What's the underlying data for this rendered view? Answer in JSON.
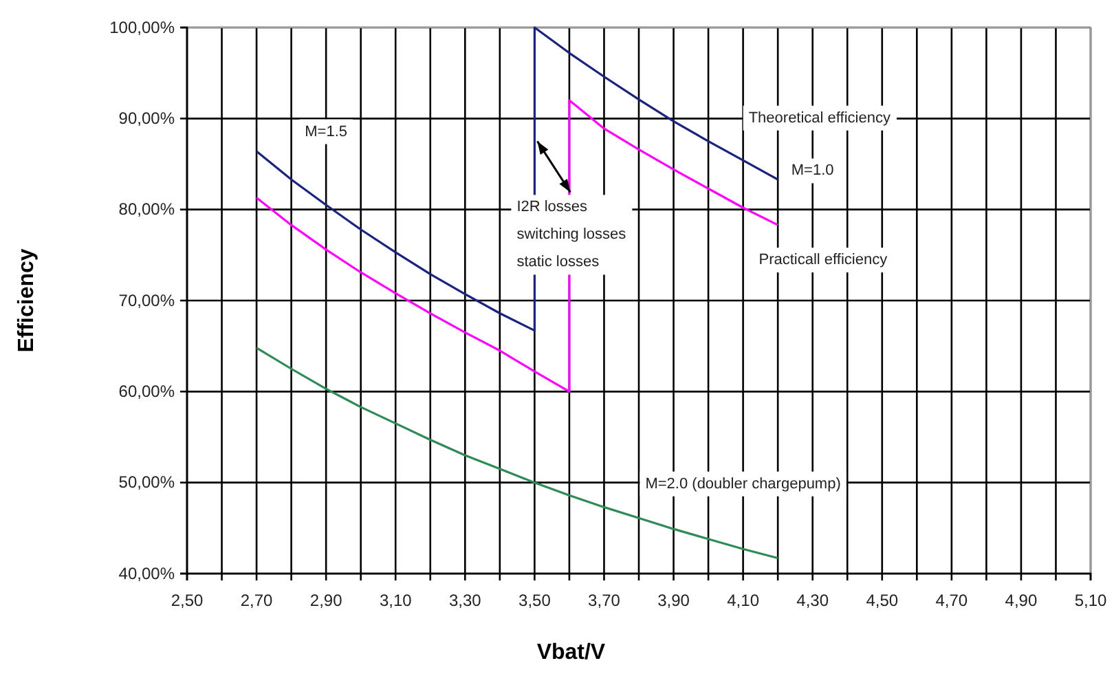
{
  "chart_data": {
    "type": "line",
    "xlabel": "Vbat/V",
    "ylabel": "Efficiency",
    "xlim": [
      2.5,
      5.1
    ],
    "xticks": [
      {
        "value": 2.5,
        "label": "2,50"
      },
      {
        "value": 2.6,
        "label": null
      },
      {
        "value": 2.7,
        "label": "2,70"
      },
      {
        "value": 2.8,
        "label": null
      },
      {
        "value": 2.9,
        "label": "2,90"
      },
      {
        "value": 3.0,
        "label": null
      },
      {
        "value": 3.1,
        "label": "3,10"
      },
      {
        "value": 3.2,
        "label": null
      },
      {
        "value": 3.3,
        "label": "3,30"
      },
      {
        "value": 3.4,
        "label": null
      },
      {
        "value": 3.5,
        "label": "3,50"
      },
      {
        "value": 3.6,
        "label": null
      },
      {
        "value": 3.7,
        "label": "3,70"
      },
      {
        "value": 3.8,
        "label": null
      },
      {
        "value": 3.9,
        "label": "3,90"
      },
      {
        "value": 4.0,
        "label": null
      },
      {
        "value": 4.1,
        "label": "4,10"
      },
      {
        "value": 4.2,
        "label": null
      },
      {
        "value": 4.3,
        "label": "4,30"
      },
      {
        "value": 4.4,
        "label": null
      },
      {
        "value": 4.5,
        "label": "4,50"
      },
      {
        "value": 4.6,
        "label": null
      },
      {
        "value": 4.7,
        "label": "4,70"
      },
      {
        "value": 4.8,
        "label": null
      },
      {
        "value": 4.9,
        "label": "4,90"
      },
      {
        "value": 5.0,
        "label": null
      },
      {
        "value": 5.1,
        "label": "5,10"
      }
    ],
    "ylim": [
      40,
      100
    ],
    "yticks": [
      {
        "value": 40,
        "label": "40,00%"
      },
      {
        "value": 50,
        "label": "50,00%"
      },
      {
        "value": 60,
        "label": "60,00%"
      },
      {
        "value": 70,
        "label": "70,00%"
      },
      {
        "value": 80,
        "label": "80,00%"
      },
      {
        "value": 90,
        "label": "90,00%"
      },
      {
        "value": 100,
        "label": "100,00%"
      }
    ],
    "grid": true,
    "marker": "none",
    "line_style": "solid",
    "series": [
      {
        "name": "Theoretical efficiency",
        "color": "#1a237e",
        "x": [
          2.7,
          2.8,
          2.9,
          3.0,
          3.1,
          3.2,
          3.3,
          3.4,
          3.5,
          3.5,
          3.6,
          3.7,
          3.8,
          3.9,
          4.0,
          4.1,
          4.2
        ],
        "values": [
          86.4,
          83.3,
          80.5,
          77.8,
          75.3,
          72.9,
          70.7,
          68.6,
          66.7,
          100,
          97.2,
          94.6,
          92.1,
          89.7,
          87.5,
          85.4,
          83.3
        ]
      },
      {
        "name": "Practicall efficiency",
        "color": "#ff00ff",
        "x": [
          2.7,
          2.8,
          2.9,
          3.0,
          3.1,
          3.2,
          3.3,
          3.4,
          3.5,
          3.6,
          3.6,
          3.7,
          3.8,
          3.9,
          4.0,
          4.1,
          4.2
        ],
        "values": [
          81.3,
          78.3,
          75.6,
          73.1,
          70.8,
          68.6,
          66.5,
          64.5,
          62.2,
          60.0,
          92.0,
          88.9,
          86.6,
          84.4,
          82.3,
          80.2,
          78.3
        ]
      },
      {
        "name": "M=2.0 (doubler chargepump)",
        "color": "#2e8b57",
        "x": [
          2.7,
          2.8,
          2.9,
          3.0,
          3.1,
          3.2,
          3.3,
          3.4,
          3.5,
          3.6,
          3.7,
          3.8,
          3.9,
          4.0,
          4.1,
          4.2
        ],
        "values": [
          64.8,
          62.5,
          60.3,
          58.3,
          56.5,
          54.7,
          53.0,
          51.5,
          50.0,
          48.6,
          47.3,
          46.1,
          44.9,
          43.8,
          42.7,
          41.7
        ]
      }
    ],
    "annotations": [
      {
        "text": "M=1.5",
        "x": 2.9,
        "y": 88.7
      },
      {
        "text": "M=1.0",
        "x": 4.3,
        "y": 84.4
      },
      {
        "text": "I2R losses\nswitching losses\nstatic losses",
        "x": 3.5,
        "y": 87.5
      }
    ]
  }
}
